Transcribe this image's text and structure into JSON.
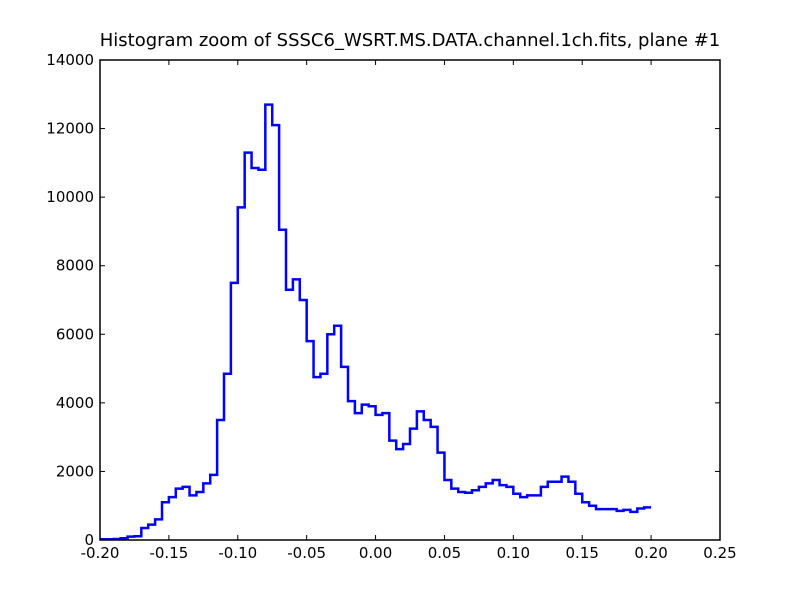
{
  "chart_data": {
    "type": "histogram",
    "title": "Histogram zoom of SSSC6_WSRT.MS.DATA.channel.1ch.fits, plane #1",
    "xlabel": "",
    "ylabel": "",
    "xlim": [
      -0.2,
      0.25
    ],
    "ylim": [
      0,
      14000
    ],
    "x_ticks": [
      -0.2,
      -0.15,
      -0.1,
      -0.05,
      0.0,
      0.05,
      0.1,
      0.15,
      0.2,
      0.25
    ],
    "x_tick_labels": [
      "-0.20",
      "-0.15",
      "-0.10",
      "-0.05",
      "0.00",
      "0.05",
      "0.10",
      "0.15",
      "0.20",
      "0.25"
    ],
    "y_ticks": [
      0,
      2000,
      4000,
      6000,
      8000,
      10000,
      12000,
      14000
    ],
    "y_tick_labels": [
      "0",
      "2000",
      "4000",
      "6000",
      "8000",
      "10000",
      "12000",
      "14000"
    ],
    "grid": false,
    "series": [
      {
        "color": "#0000ff",
        "style": "step",
        "bin_start": -0.2,
        "bin_width": 0.005,
        "values": [
          20,
          20,
          30,
          50,
          100,
          110,
          350,
          450,
          600,
          1100,
          1250,
          1500,
          1550,
          1300,
          1400,
          1650,
          1900,
          3500,
          4850,
          7500,
          9700,
          11300,
          10850,
          10800,
          12700,
          12100,
          9050,
          7300,
          7600,
          7000,
          5800,
          4750,
          4850,
          6000,
          6250,
          5050,
          4050,
          3700,
          3950,
          3900,
          3650,
          3700,
          2900,
          2650,
          2800,
          3250,
          3750,
          3500,
          3300,
          2550,
          1750,
          1500,
          1400,
          1380,
          1450,
          1550,
          1650,
          1750,
          1600,
          1550,
          1350,
          1250,
          1300,
          1300,
          1550,
          1700,
          1700,
          1850,
          1700,
          1350,
          1100,
          1000,
          900,
          900,
          900,
          850,
          880,
          820,
          920,
          950
        ],
        "end_value": 950
      }
    ]
  }
}
